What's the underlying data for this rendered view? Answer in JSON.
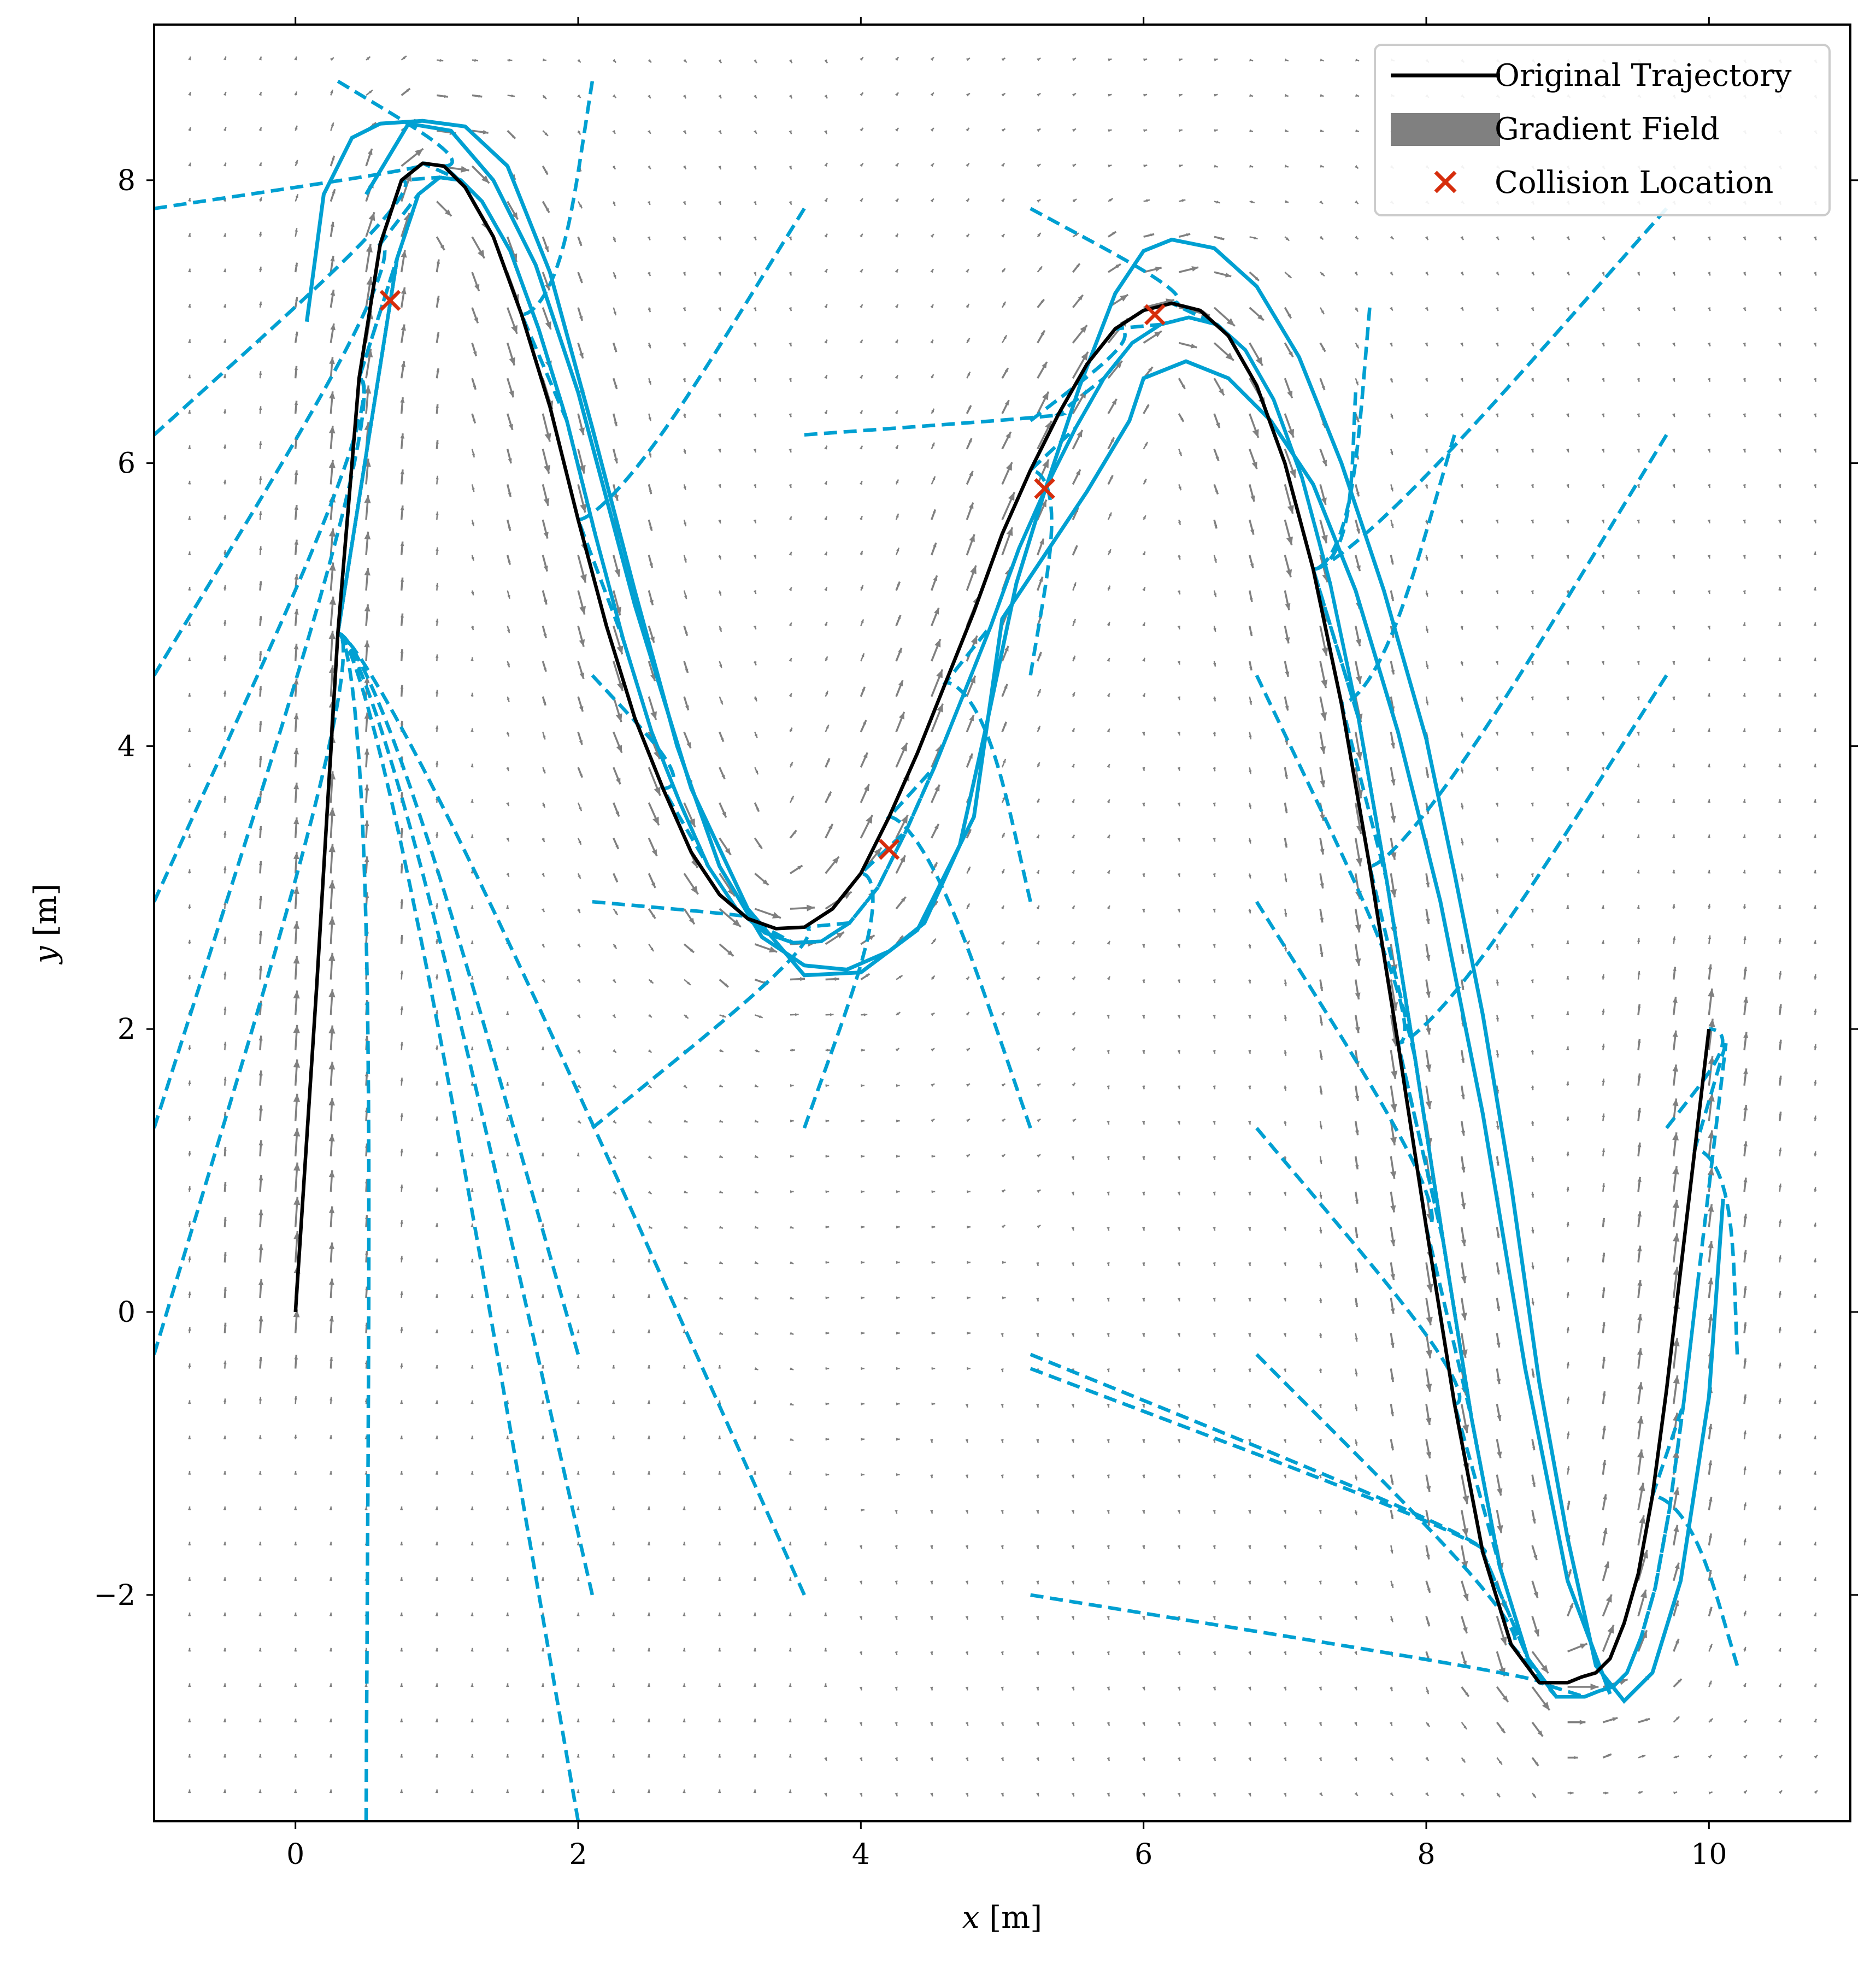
{
  "chart_data": {
    "type": "line",
    "xlabel_var": "x",
    "xlabel_unit": "[m]",
    "ylabel_var": "y",
    "ylabel_unit": "[m]",
    "xlim": [
      -1.0,
      11.0
    ],
    "ylim": [
      -3.6,
      9.1
    ],
    "xticks": [
      0,
      2,
      4,
      6,
      8,
      10
    ],
    "yticks": [
      -2,
      0,
      2,
      4,
      6,
      8
    ],
    "xtick_labels": [
      "0",
      "2",
      "4",
      "6",
      "8",
      "10"
    ],
    "ytick_labels": [
      "−2",
      "0",
      "2",
      "4",
      "6",
      "8"
    ],
    "grid": false,
    "legend_position": "top-right",
    "colors": {
      "trajectory": "#000000",
      "gradient_field": "#808080",
      "collision": "#d62d0c",
      "perturbed": "#00a0d2"
    },
    "legend": [
      {
        "label": "Original Trajectory",
        "marker": "line",
        "color": "#000000"
      },
      {
        "label": "Gradient Field",
        "marker": "patch",
        "color": "#808080"
      },
      {
        "label": "Collision Location",
        "marker": "x",
        "color": "#d62d0c"
      }
    ],
    "original_trajectory": {
      "x": [
        0.0,
        0.15,
        0.3,
        0.45,
        0.6,
        0.75,
        0.9,
        1.05,
        1.2,
        1.4,
        1.6,
        1.8,
        2.0,
        2.2,
        2.4,
        2.6,
        2.8,
        3.0,
        3.2,
        3.4,
        3.6,
        3.8,
        4.0,
        4.2,
        4.4,
        4.6,
        4.8,
        5.0,
        5.2,
        5.4,
        5.6,
        5.8,
        6.0,
        6.2,
        6.4,
        6.6,
        6.8,
        7.0,
        7.2,
        7.4,
        7.6,
        7.8,
        8.0,
        8.2,
        8.4,
        8.6,
        8.8,
        9.0,
        9.1,
        9.2,
        9.3,
        9.4,
        9.5,
        9.6,
        9.7,
        9.8,
        9.9,
        10.0
      ],
      "y": [
        0.0,
        2.3,
        4.8,
        6.6,
        7.55,
        8.0,
        8.12,
        8.1,
        7.95,
        7.6,
        7.05,
        6.4,
        5.6,
        4.85,
        4.2,
        3.7,
        3.25,
        2.95,
        2.78,
        2.71,
        2.72,
        2.85,
        3.1,
        3.5,
        3.95,
        4.45,
        4.95,
        5.5,
        5.95,
        6.35,
        6.7,
        6.95,
        7.08,
        7.13,
        7.08,
        6.9,
        6.55,
        6.0,
        5.25,
        4.3,
        3.15,
        1.9,
        0.6,
        -0.65,
        -1.7,
        -2.35,
        -2.62,
        -2.62,
        -2.58,
        -2.55,
        -2.45,
        -2.2,
        -1.85,
        -1.3,
        -0.55,
        0.3,
        1.15,
        2.0
      ]
    },
    "collision_locations": {
      "x": [
        0.67,
        4.2,
        5.3,
        6.08
      ],
      "y": [
        7.15,
        3.27,
        5.82,
        7.05
      ]
    },
    "perturbed_trajectories": [
      {
        "style": "solid",
        "x": [
          0.08,
          0.2,
          0.4,
          0.6,
          0.9,
          1.2,
          1.5,
          1.8,
          2.1,
          2.4,
          2.7,
          3.0,
          3.3,
          3.6,
          3.9,
          4.2,
          4.45,
          4.7,
          4.9,
          5.1,
          5.3,
          5.55,
          5.8,
          6.0,
          6.2,
          6.5,
          6.8,
          7.1,
          7.4,
          7.7,
          8.0,
          8.2,
          8.4,
          8.6,
          8.8,
          9.0,
          9.2,
          9.4,
          9.6,
          9.8,
          10.0,
          10.1
        ],
        "y": [
          7.0,
          7.9,
          8.3,
          8.4,
          8.42,
          8.38,
          8.1,
          7.35,
          6.25,
          5.1,
          4.0,
          3.15,
          2.65,
          2.45,
          2.42,
          2.55,
          2.75,
          3.3,
          4.2,
          5.15,
          5.8,
          6.55,
          7.2,
          7.5,
          7.58,
          7.52,
          7.25,
          6.75,
          6.0,
          5.1,
          4.05,
          3.1,
          2.1,
          0.9,
          -0.5,
          -1.6,
          -2.5,
          -2.75,
          -2.55,
          -1.9,
          -0.6,
          0.8
        ]
      },
      {
        "style": "solid",
        "x": [
          0.5,
          0.8,
          1.1,
          1.4,
          1.7,
          2.0,
          2.4,
          2.8,
          3.2,
          3.6,
          4.0,
          4.4,
          4.8,
          5.0,
          5.3,
          5.6,
          5.9,
          6.0,
          6.3,
          6.6,
          6.9,
          7.2,
          7.5,
          7.8,
          8.1,
          8.4,
          8.7,
          9.0,
          9.3
        ],
        "y": [
          7.9,
          8.4,
          8.35,
          8.0,
          7.4,
          6.5,
          5.0,
          3.7,
          2.85,
          2.38,
          2.4,
          2.7,
          3.5,
          4.9,
          5.35,
          5.8,
          6.3,
          6.6,
          6.72,
          6.6,
          6.3,
          5.85,
          5.1,
          4.1,
          2.9,
          1.4,
          -0.4,
          -1.9,
          -2.7
        ]
      }
    ],
    "perturbed_starts": {
      "x": [
        -1.0,
        -1.0,
        -1.0,
        -1.0,
        -1.0,
        -1.0,
        2.0,
        2.1,
        3.6,
        5.2,
        5.2,
        5.2,
        3.6,
        2.1,
        2.1,
        2.1,
        7.6,
        7.5,
        6.8,
        6.8,
        6.8,
        6.8,
        5.2,
        5.2,
        9.7,
        9.7,
        9.7,
        2.0,
        0.5,
        0.3,
        2.1,
        3.6,
        3.6,
        5.2,
        5.2,
        5.2,
        8.2,
        9.7,
        10.2,
        10.2
      ],
      "y": [
        7.8,
        6.2,
        4.5,
        2.9,
        1.3,
        -0.3,
        -0.3,
        -2.0,
        -2.0,
        -2.0,
        -0.3,
        1.3,
        1.3,
        1.3,
        2.9,
        4.5,
        7.1,
        6.5,
        4.5,
        2.9,
        1.3,
        -0.3,
        -0.4,
        2.9,
        7.8,
        6.2,
        4.5,
        -3.6,
        -3.6,
        8.7,
        8.7,
        7.8,
        6.2,
        7.8,
        6.3,
        4.5,
        6.2,
        1.3,
        -0.3,
        -2.5
      ]
    }
  }
}
